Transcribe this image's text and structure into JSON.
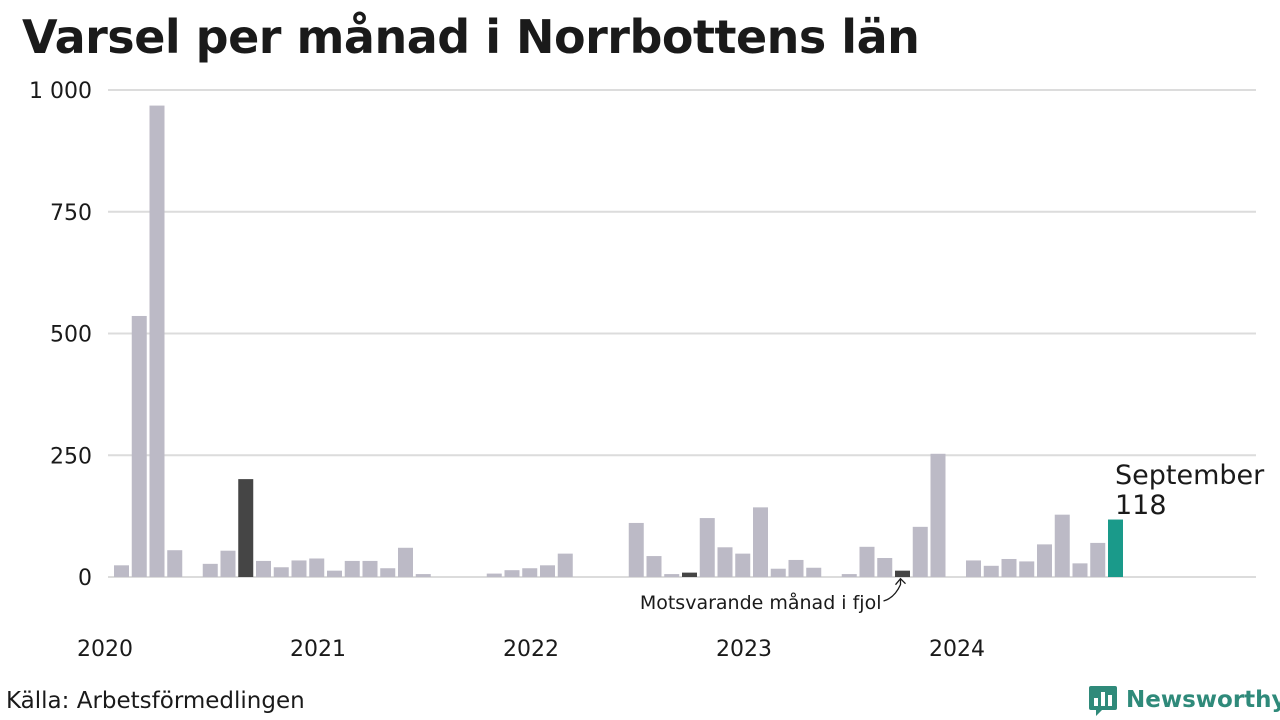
{
  "chart_data": {
    "type": "bar",
    "title": "Varsel per månad i Norrbottens län",
    "yticks": [
      {
        "value": 0,
        "label": "0"
      },
      {
        "value": 250,
        "label": "250"
      },
      {
        "value": 500,
        "label": "500"
      },
      {
        "value": 750,
        "label": "750"
      },
      {
        "value": 1000,
        "label": "1 000"
      }
    ],
    "ylim": [
      0,
      1000
    ],
    "xticks": [
      "2020",
      "2021",
      "2022",
      "2023",
      "2024"
    ],
    "grid": true,
    "colors": {
      "default": "#bcbac6",
      "comparison": "#454545",
      "highlight": "#1a9a8a"
    },
    "series": [
      {
        "month": "2020-01",
        "value": 24
      },
      {
        "month": "2020-02",
        "value": 536
      },
      {
        "month": "2020-03",
        "value": 968
      },
      {
        "month": "2020-04",
        "value": 55
      },
      {
        "month": "2020-05",
        "value": 0
      },
      {
        "month": "2020-06",
        "value": 27
      },
      {
        "month": "2020-07",
        "value": 54
      },
      {
        "month": "2020-08",
        "value": 201,
        "style": "comparison"
      },
      {
        "month": "2020-09",
        "value": 33
      },
      {
        "month": "2020-10",
        "value": 20
      },
      {
        "month": "2020-11",
        "value": 34
      },
      {
        "month": "2020-12",
        "value": 38
      },
      {
        "month": "2021-01",
        "value": 13
      },
      {
        "month": "2021-02",
        "value": 33
      },
      {
        "month": "2021-03",
        "value": 33
      },
      {
        "month": "2021-04",
        "value": 18
      },
      {
        "month": "2021-05",
        "value": 60
      },
      {
        "month": "2021-06",
        "value": 6
      },
      {
        "month": "2021-07",
        "value": 0
      },
      {
        "month": "2021-08",
        "value": 0
      },
      {
        "month": "2021-09",
        "value": 0
      },
      {
        "month": "2021-10",
        "value": 7
      },
      {
        "month": "2021-11",
        "value": 14
      },
      {
        "month": "2021-12",
        "value": 18
      },
      {
        "month": "2022-01",
        "value": 24
      },
      {
        "month": "2022-02",
        "value": 48
      },
      {
        "month": "2022-03",
        "value": 0
      },
      {
        "month": "2022-04",
        "value": 0
      },
      {
        "month": "2022-05",
        "value": 0
      },
      {
        "month": "2022-06",
        "value": 111
      },
      {
        "month": "2022-07",
        "value": 43
      },
      {
        "month": "2022-08",
        "value": 6
      },
      {
        "month": "2022-09",
        "value": 9,
        "style": "comparison"
      },
      {
        "month": "2022-10",
        "value": 121
      },
      {
        "month": "2022-11",
        "value": 61
      },
      {
        "month": "2022-12",
        "value": 48
      },
      {
        "month": "2023-01",
        "value": 143
      },
      {
        "month": "2023-02",
        "value": 17
      },
      {
        "month": "2023-03",
        "value": 35
      },
      {
        "month": "2023-04",
        "value": 19
      },
      {
        "month": "2023-05",
        "value": 0
      },
      {
        "month": "2023-06",
        "value": 6
      },
      {
        "month": "2023-07",
        "value": 62
      },
      {
        "month": "2023-08",
        "value": 39
      },
      {
        "month": "2023-09",
        "value": 13,
        "style": "comparison"
      },
      {
        "month": "2023-10",
        "value": 103
      },
      {
        "month": "2023-11",
        "value": 253
      },
      {
        "month": "2023-12",
        "value": 0
      },
      {
        "month": "2024-01",
        "value": 34
      },
      {
        "month": "2024-02",
        "value": 23
      },
      {
        "month": "2024-03",
        "value": 37
      },
      {
        "month": "2024-04",
        "value": 32
      },
      {
        "month": "2024-05",
        "value": 67
      },
      {
        "month": "2024-06",
        "value": 128
      },
      {
        "month": "2024-07",
        "value": 28
      },
      {
        "month": "2024-08",
        "value": 70
      },
      {
        "month": "2024-09",
        "value": 118,
        "style": "highlight"
      }
    ],
    "annotations": {
      "comparison_label": "Motsvarande månad i fjol",
      "current_month": "September",
      "current_value": "118"
    }
  },
  "footer": {
    "source": "Källa: Arbetsförmedlingen",
    "brand": "Newsworthy",
    "brand_icon": "newsworthy-logo-icon"
  }
}
